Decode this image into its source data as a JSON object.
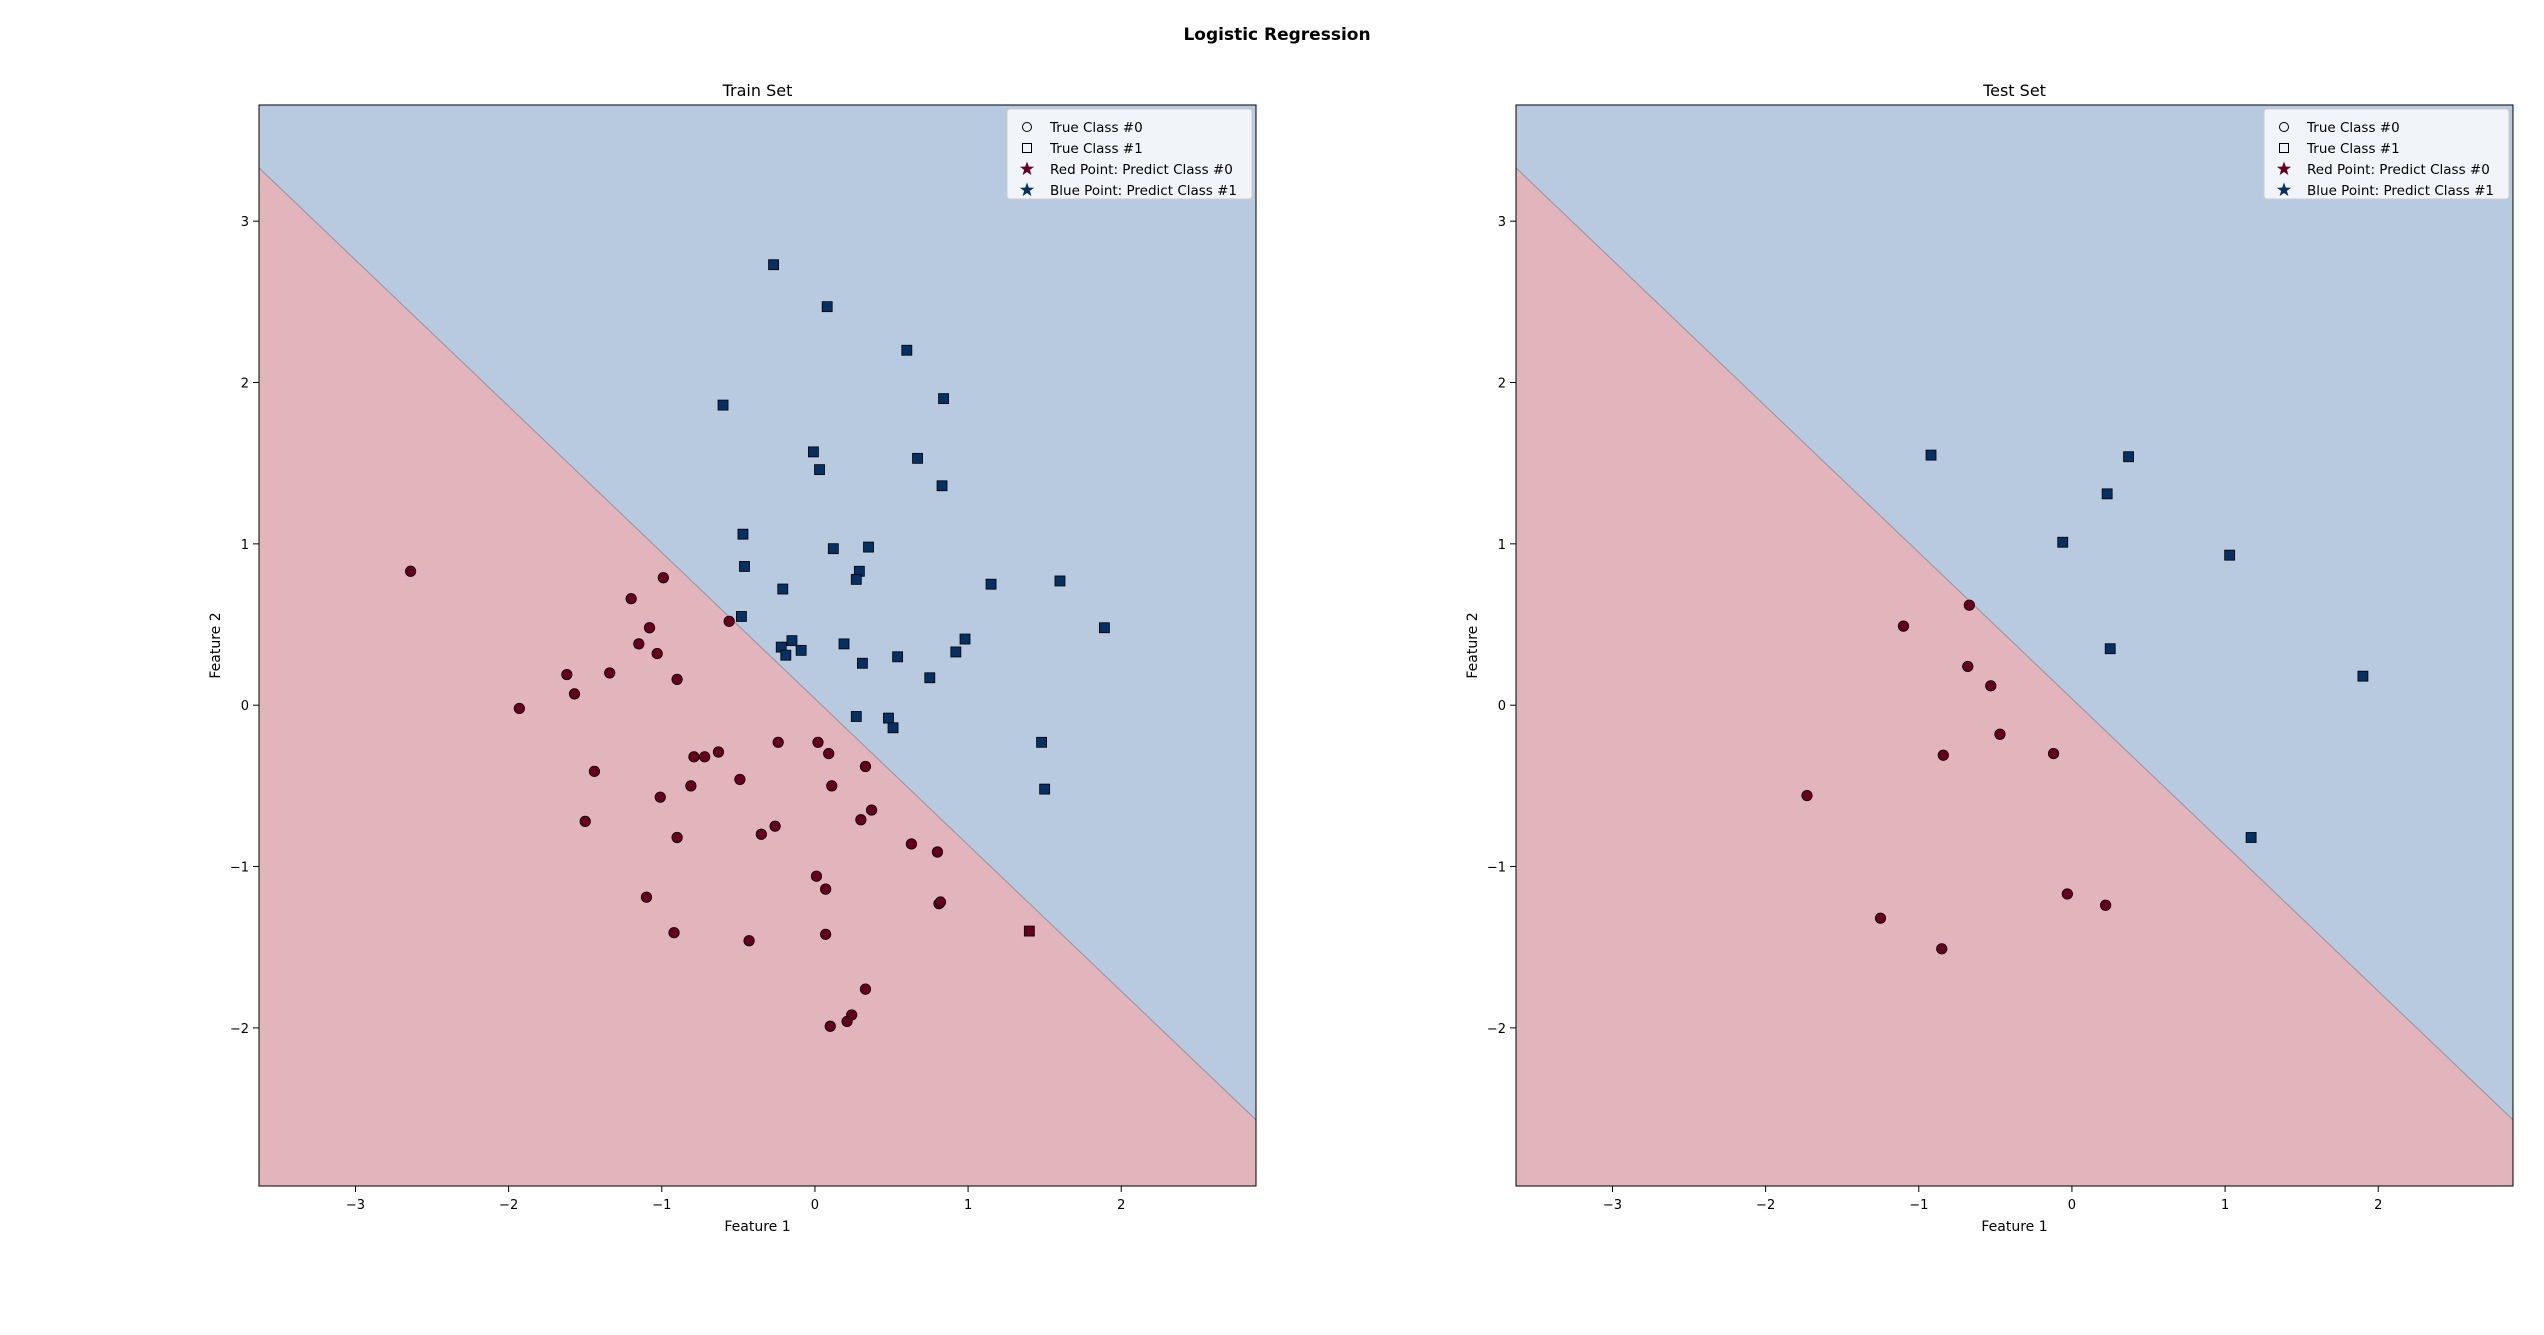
{
  "figure_title": "Logistic Regression",
  "colors": {
    "region_class0": "#e2b4bb",
    "region_class1": "#b7cadf",
    "point_class0": "#67001f",
    "point_class1": "#053061",
    "boundary": "#8a96a8"
  },
  "legend": {
    "placement": "upper right",
    "entries": [
      {
        "label": "True Class #0",
        "marker": "circle",
        "color": "hollow"
      },
      {
        "label": "True Class #1",
        "marker": "square",
        "color": "hollow"
      },
      {
        "label": "Red Point: Predict Class #0",
        "marker": "star",
        "color": "#67001f"
      },
      {
        "label": "Blue Point: Predict Class #1",
        "marker": "star",
        "color": "#053061"
      }
    ]
  },
  "chart_data": [
    {
      "type": "scatter",
      "title": "Train Set",
      "xlabel": "Feature 1",
      "ylabel": "Feature 2",
      "xlim": [
        -3.63,
        2.88
      ],
      "ylim": [
        -2.98,
        3.72
      ],
      "xticks": [
        -3,
        -2,
        -1,
        0,
        1,
        2
      ],
      "yticks": [
        -2,
        -1,
        0,
        1,
        2,
        3
      ],
      "decision_boundary": [
        [
          -3.63,
          3.33
        ],
        [
          2.88,
          -2.57
        ]
      ],
      "points": [
        [
          -2.64,
          0.83,
          0,
          0
        ],
        [
          -1.93,
          -0.02,
          0,
          0
        ],
        [
          -1.62,
          0.19,
          0,
          0
        ],
        [
          -1.57,
          0.07,
          0,
          0
        ],
        [
          -1.34,
          0.2,
          0,
          0
        ],
        [
          -1.5,
          -0.72,
          0,
          0
        ],
        [
          -1.44,
          -0.41,
          0,
          0
        ],
        [
          -1.2,
          0.66,
          0,
          0
        ],
        [
          -1.15,
          0.38,
          0,
          0
        ],
        [
          -1.08,
          0.48,
          0,
          0
        ],
        [
          -1.03,
          0.32,
          0,
          0
        ],
        [
          -0.99,
          0.79,
          0,
          0
        ],
        [
          -0.9,
          0.16,
          0,
          0
        ],
        [
          -1.01,
          -0.57,
          0,
          0
        ],
        [
          -0.81,
          -0.5,
          0,
          0
        ],
        [
          -0.79,
          -0.32,
          0,
          0
        ],
        [
          -0.72,
          -0.32,
          0,
          0
        ],
        [
          -0.63,
          -0.29,
          0,
          0
        ],
        [
          -0.9,
          -0.82,
          0,
          0
        ],
        [
          -1.1,
          -1.19,
          0,
          0
        ],
        [
          -0.92,
          -1.41,
          0,
          0
        ],
        [
          -0.56,
          0.52,
          0,
          0
        ],
        [
          -0.49,
          -0.46,
          0,
          0
        ],
        [
          -0.35,
          -0.8,
          0,
          0
        ],
        [
          -0.26,
          -0.75,
          0,
          0
        ],
        [
          -0.24,
          -0.23,
          0,
          0
        ],
        [
          -0.43,
          -1.46,
          0,
          0
        ],
        [
          0.02,
          -0.23,
          0,
          0
        ],
        [
          0.09,
          -0.3,
          0,
          0
        ],
        [
          0.11,
          -0.5,
          0,
          0
        ],
        [
          0.33,
          -0.38,
          0,
          0
        ],
        [
          0.3,
          -0.71,
          0,
          0
        ],
        [
          0.37,
          -0.65,
          0,
          0
        ],
        [
          0.01,
          -1.06,
          0,
          0
        ],
        [
          0.07,
          -1.14,
          0,
          0
        ],
        [
          0.07,
          -1.42,
          0,
          0
        ],
        [
          0.63,
          -0.86,
          0,
          0
        ],
        [
          0.8,
          -0.91,
          0,
          0
        ],
        [
          0.81,
          -1.23,
          0,
          0
        ],
        [
          0.82,
          -1.22,
          0,
          0
        ],
        [
          0.33,
          -1.76,
          0,
          0
        ],
        [
          0.24,
          -1.92,
          0,
          0
        ],
        [
          0.21,
          -1.96,
          0,
          0
        ],
        [
          0.1,
          -1.99,
          0,
          0
        ],
        [
          1.4,
          -1.4,
          1,
          0
        ],
        [
          -0.27,
          2.73,
          1,
          1
        ],
        [
          0.08,
          2.47,
          1,
          1
        ],
        [
          0.6,
          2.2,
          1,
          1
        ],
        [
          0.84,
          1.9,
          1,
          1
        ],
        [
          -0.6,
          1.86,
          1,
          1
        ],
        [
          -0.01,
          1.57,
          1,
          1
        ],
        [
          0.03,
          1.46,
          1,
          1
        ],
        [
          0.67,
          1.53,
          1,
          1
        ],
        [
          0.83,
          1.36,
          1,
          1
        ],
        [
          -0.47,
          1.06,
          1,
          1
        ],
        [
          -0.46,
          0.86,
          1,
          1
        ],
        [
          0.12,
          0.97,
          1,
          1
        ],
        [
          0.35,
          0.98,
          1,
          1
        ],
        [
          0.29,
          0.83,
          1,
          1
        ],
        [
          0.27,
          0.78,
          1,
          1
        ],
        [
          1.15,
          0.75,
          1,
          1
        ],
        [
          1.6,
          0.77,
          1,
          1
        ],
        [
          -0.21,
          0.72,
          1,
          1
        ],
        [
          -0.48,
          0.55,
          1,
          1
        ],
        [
          1.89,
          0.48,
          1,
          1
        ],
        [
          0.98,
          0.41,
          1,
          1
        ],
        [
          0.92,
          0.33,
          1,
          1
        ],
        [
          -0.15,
          0.4,
          1,
          1
        ],
        [
          -0.22,
          0.36,
          1,
          1
        ],
        [
          -0.19,
          0.31,
          1,
          1
        ],
        [
          -0.09,
          0.34,
          1,
          1
        ],
        [
          0.19,
          0.38,
          1,
          1
        ],
        [
          0.31,
          0.26,
          1,
          1
        ],
        [
          0.54,
          0.3,
          1,
          1
        ],
        [
          0.75,
          0.17,
          1,
          1
        ],
        [
          0.27,
          -0.07,
          1,
          1
        ],
        [
          0.48,
          -0.08,
          1,
          1
        ],
        [
          0.51,
          -0.14,
          1,
          1
        ],
        [
          1.48,
          -0.23,
          1,
          1
        ],
        [
          1.5,
          -0.52,
          1,
          1
        ]
      ]
    },
    {
      "type": "scatter",
      "title": "Test Set",
      "xlabel": "Feature 1",
      "ylabel": "Feature 2",
      "xlim": [
        -3.63,
        2.88
      ],
      "ylim": [
        -2.98,
        3.72
      ],
      "xticks": [
        -3,
        -2,
        -1,
        0,
        1,
        2
      ],
      "yticks": [
        -2,
        -1,
        0,
        1,
        2,
        3
      ],
      "decision_boundary": [
        [
          -3.63,
          3.33
        ],
        [
          2.88,
          -2.57
        ]
      ],
      "points": [
        [
          -0.67,
          0.62,
          0,
          0
        ],
        [
          -1.1,
          0.49,
          0,
          0
        ],
        [
          -0.68,
          0.24,
          0,
          0
        ],
        [
          -0.53,
          0.12,
          0,
          0
        ],
        [
          -0.47,
          -0.18,
          0,
          0
        ],
        [
          -0.84,
          -0.31,
          0,
          0
        ],
        [
          -0.12,
          -0.3,
          0,
          0
        ],
        [
          -1.73,
          -0.56,
          0,
          0
        ],
        [
          -0.03,
          -1.17,
          0,
          0
        ],
        [
          0.22,
          -1.24,
          0,
          0
        ],
        [
          -1.25,
          -1.32,
          0,
          0
        ],
        [
          -0.85,
          -1.51,
          0,
          0
        ],
        [
          -0.92,
          1.55,
          1,
          1
        ],
        [
          0.37,
          1.54,
          1,
          1
        ],
        [
          0.23,
          1.31,
          1,
          1
        ],
        [
          -0.06,
          1.01,
          1,
          1
        ],
        [
          1.03,
          0.93,
          1,
          1
        ],
        [
          0.25,
          0.35,
          1,
          1
        ],
        [
          1.9,
          0.18,
          1,
          1
        ],
        [
          1.17,
          -0.82,
          1,
          1
        ]
      ]
    }
  ]
}
